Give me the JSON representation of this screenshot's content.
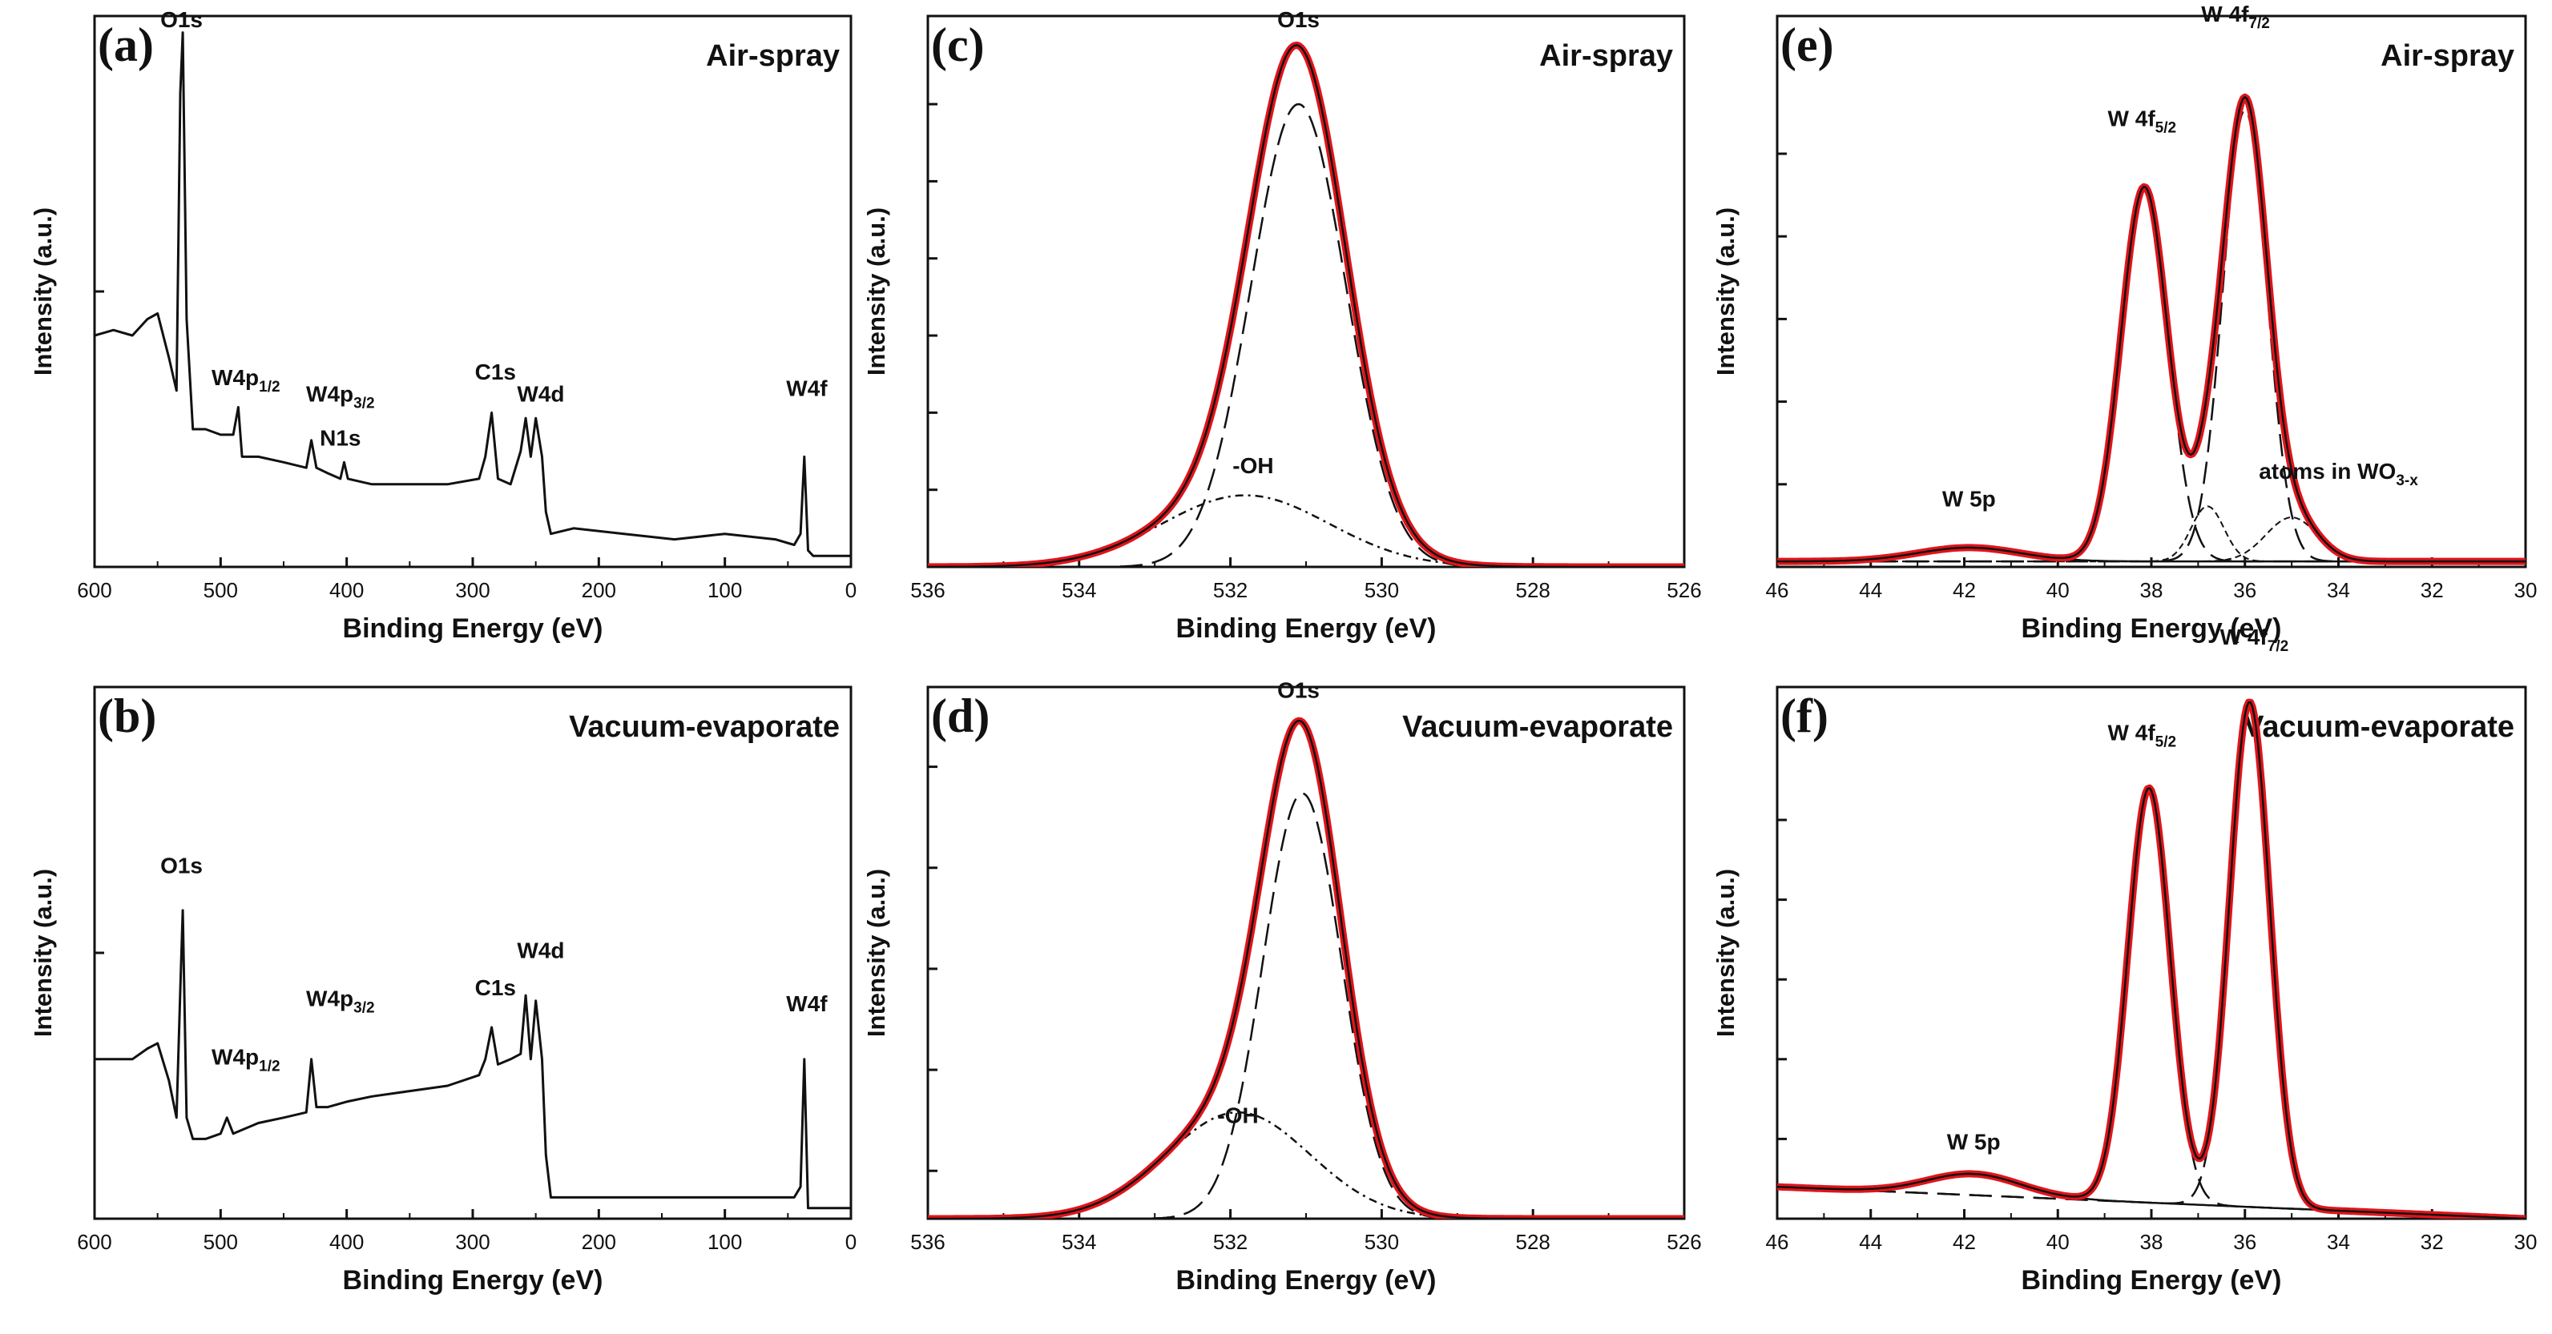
{
  "figure": {
    "panels_order": [
      "a",
      "b",
      "c",
      "d",
      "e",
      "f"
    ],
    "colors": {
      "fit": "#e0141a",
      "data": "#111111",
      "component": "#111111",
      "axis": "#111111"
    }
  },
  "chart_data": [
    {
      "id": "a",
      "label": "(a)",
      "title": "Air-spray",
      "type": "line",
      "xlabel": "Binding Energy (eV)",
      "ylabel": "Intensity (a.u.)",
      "xlim": [
        600,
        0
      ],
      "ylim": [
        0,
        100
      ],
      "xticks": [
        600,
        500,
        400,
        300,
        200,
        100,
        0
      ],
      "yticks": [
        50
      ],
      "x_tick_labels": [
        "600",
        "500",
        "400",
        "300",
        "200",
        "100",
        "0"
      ],
      "series": [
        {
          "name": "survey",
          "style": "data",
          "x": [
            600,
            585,
            570,
            558,
            550,
            541,
            535,
            532,
            530,
            527,
            522,
            512,
            500,
            490,
            486,
            483,
            470,
            450,
            432,
            428,
            424,
            415,
            405,
            402,
            399,
            380,
            350,
            320,
            295,
            290,
            285,
            280,
            270,
            262,
            258,
            254,
            250,
            245,
            242,
            238,
            220,
            180,
            140,
            100,
            60,
            45,
            40,
            37,
            34,
            30,
            0
          ],
          "y": [
            42,
            43,
            42,
            45,
            46,
            38,
            32,
            86,
            97,
            45,
            25,
            25,
            24,
            24,
            29,
            20,
            20,
            19,
            18,
            23,
            18,
            17,
            16,
            19,
            16,
            15,
            15,
            15,
            16,
            20,
            28,
            16,
            15,
            21,
            27,
            20,
            27,
            20,
            10,
            6,
            7,
            6,
            5,
            6,
            5,
            4,
            6,
            20,
            3,
            2,
            2
          ]
        }
      ],
      "annotations": [
        {
          "text": "O1s",
          "sub": "",
          "x": 531,
          "y": 98
        },
        {
          "text": "W4p",
          "sub": "1/2",
          "x": 480,
          "y": 33
        },
        {
          "text": "W4p",
          "sub": "3/2",
          "x": 405,
          "y": 30
        },
        {
          "text": "N1s",
          "sub": "",
          "x": 405,
          "y": 22
        },
        {
          "text": "C1s",
          "sub": "",
          "x": 282,
          "y": 34
        },
        {
          "text": "W4d",
          "sub": "",
          "x": 246,
          "y": 30
        },
        {
          "text": "W4f",
          "sub": "",
          "x": 35,
          "y": 31
        }
      ]
    },
    {
      "id": "b",
      "label": "(b)",
      "title": "Vacuum-evaporate",
      "type": "line",
      "xlabel": "Binding Energy (eV)",
      "ylabel": "Intensity (a.u.)",
      "xlim": [
        600,
        0
      ],
      "ylim": [
        0,
        100
      ],
      "xticks": [
        600,
        500,
        400,
        300,
        200,
        100,
        0
      ],
      "yticks": [
        50
      ],
      "x_tick_labels": [
        "600",
        "500",
        "400",
        "300",
        "200",
        "100",
        "0"
      ],
      "series": [
        {
          "name": "survey",
          "style": "data",
          "x": [
            600,
            585,
            570,
            558,
            550,
            541,
            535,
            532,
            530,
            527,
            522,
            512,
            500,
            495,
            490,
            470,
            450,
            432,
            428,
            424,
            415,
            400,
            380,
            350,
            320,
            295,
            290,
            285,
            280,
            270,
            262,
            258,
            254,
            250,
            245,
            242,
            238,
            220,
            180,
            140,
            100,
            60,
            45,
            40,
            37,
            34,
            30,
            0
          ],
          "y": [
            30,
            30,
            30,
            32,
            33,
            26,
            19,
            43,
            58,
            19,
            15,
            15,
            16,
            19,
            16,
            18,
            19,
            20,
            30,
            21,
            21,
            22,
            23,
            24,
            25,
            27,
            30,
            36,
            29,
            30,
            31,
            42,
            30,
            41,
            30,
            12,
            4,
            4,
            4,
            4,
            4,
            4,
            4,
            6,
            30,
            2,
            2,
            2
          ]
        }
      ],
      "annotations": [
        {
          "text": "O1s",
          "sub": "",
          "x": 531,
          "y": 65
        },
        {
          "text": "W4p",
          "sub": "1/2",
          "x": 480,
          "y": 29
        },
        {
          "text": "W4p",
          "sub": "3/2",
          "x": 405,
          "y": 40
        },
        {
          "text": "C1s",
          "sub": "",
          "x": 282,
          "y": 42
        },
        {
          "text": "W4d",
          "sub": "",
          "x": 246,
          "y": 49
        },
        {
          "text": "W4f",
          "sub": "",
          "x": 35,
          "y": 39
        }
      ]
    },
    {
      "id": "c",
      "label": "(c)",
      "title": "Air-spray",
      "type": "line",
      "xlabel": "Binding Energy (eV)",
      "ylabel": "Intensity (a.u.)",
      "xlim": [
        536,
        526
      ],
      "ylim": [
        0,
        100
      ],
      "xticks": [
        536,
        534,
        532,
        530,
        528,
        526
      ],
      "yticks": [
        14,
        28,
        42,
        56,
        70,
        84
      ],
      "x_tick_labels": [
        "536",
        "534",
        "532",
        "530",
        "528",
        "526"
      ],
      "peaks": [
        {
          "name": "O1s",
          "center": 531.1,
          "height": 84,
          "sigma": 0.63
        },
        {
          "name": "-OH",
          "center": 531.8,
          "height": 13,
          "sigma": 1.1
        }
      ],
      "baseline": [
        536,
        0,
        526,
        0
      ],
      "series": [
        {
          "name": "experimental",
          "style": "data",
          "formula": "fit"
        },
        {
          "name": "fit",
          "style": "fit"
        },
        {
          "name": "O1s component",
          "style": "dash"
        },
        {
          "name": "-OH component",
          "style": "dashdot"
        }
      ],
      "annotations": [
        {
          "text": "O1s",
          "sub": "",
          "x": 531.1,
          "y": 98
        },
        {
          "text": "-OH",
          "sub": "",
          "x": 531.7,
          "y": 17
        }
      ]
    },
    {
      "id": "d",
      "label": "(d)",
      "title": "Vacuum-evaporate",
      "type": "line",
      "xlabel": "Binding Energy (eV)",
      "ylabel": "Intensity (a.u.)",
      "xlim": [
        536,
        526
      ],
      "ylim": [
        0,
        100
      ],
      "xticks": [
        536,
        534,
        532,
        530,
        528,
        526
      ],
      "yticks": [
        9,
        28,
        47,
        66,
        85
      ],
      "x_tick_labels": [
        "536",
        "534",
        "532",
        "530",
        "528",
        "526"
      ],
      "peaks": [
        {
          "name": "O1s",
          "center": 531.05,
          "height": 80,
          "sigma": 0.52
        },
        {
          "name": "-OH",
          "center": 531.9,
          "height": 20,
          "sigma": 0.95
        }
      ],
      "baseline": [
        536,
        0,
        526,
        0
      ],
      "series": [
        {
          "name": "experimental",
          "style": "data",
          "formula": "fit"
        },
        {
          "name": "fit",
          "style": "fit"
        },
        {
          "name": "O1s component",
          "style": "dash"
        },
        {
          "name": "-OH component",
          "style": "dashdot"
        }
      ],
      "annotations": [
        {
          "text": "O1s",
          "sub": "",
          "x": 531.1,
          "y": 98
        },
        {
          "text": "-OH",
          "sub": "",
          "x": 531.9,
          "y": 18
        }
      ]
    },
    {
      "id": "e",
      "label": "(e)",
      "title": "Air-spray",
      "type": "line",
      "xlabel": "Binding Energy (eV)",
      "ylabel": "Intensity (a.u.)",
      "xlim": [
        46,
        30
      ],
      "ylim": [
        0,
        100
      ],
      "xticks": [
        46,
        44,
        42,
        40,
        38,
        36,
        34,
        32,
        30
      ],
      "yticks": [
        15,
        30,
        45,
        60,
        75
      ],
      "x_tick_labels": [
        "46",
        "44",
        "42",
        "40",
        "38",
        "36",
        "34",
        "32",
        "30"
      ],
      "peaks": [
        {
          "name": "W 4f5/2",
          "center": 38.15,
          "height": 68,
          "sigma": 0.5
        },
        {
          "name": "W 4f7/2",
          "center": 36.0,
          "height": 82,
          "sigma": 0.47
        },
        {
          "name": "W 5p",
          "center": 41.9,
          "height": 2.5,
          "sigma": 1.1
        }
      ],
      "minor_peaks": [
        {
          "center": 36.8,
          "height": 10,
          "sigma": 0.35
        },
        {
          "center": 35.0,
          "height": 8,
          "sigma": 0.55
        }
      ],
      "baseline": [
        46,
        1,
        30,
        1
      ],
      "series": [
        {
          "name": "experimental",
          "style": "data",
          "formula": "fit"
        },
        {
          "name": "fit",
          "style": "fit"
        },
        {
          "name": "components",
          "style": "dash"
        }
      ],
      "annotations": [
        {
          "text": "W 4f",
          "sub": "7/2",
          "x": 36.2,
          "y": 99
        },
        {
          "text": "W 4f",
          "sub": "5/2",
          "x": 38.2,
          "y": 80
        },
        {
          "text": "W 5p",
          "sub": "",
          "x": 41.9,
          "y": 11
        },
        {
          "text": "atoms in WO",
          "sub": "3-x",
          "x": 34.0,
          "y": 16
        }
      ]
    },
    {
      "id": "f",
      "label": "(f)",
      "title": "Vacuum-evaporate",
      "type": "line",
      "xlabel": "Binding Energy (eV)",
      "ylabel": "Intensity (a.u.)",
      "xlim": [
        46,
        30
      ],
      "ylim": [
        0,
        100
      ],
      "xticks": [
        46,
        44,
        42,
        40,
        38,
        36,
        34,
        32,
        30
      ],
      "yticks": [
        15,
        30,
        45,
        60,
        75
      ],
      "x_tick_labels": [
        "46",
        "44",
        "42",
        "40",
        "38",
        "36",
        "34",
        "32",
        "30"
      ],
      "peaks": [
        {
          "name": "W 4f5/2",
          "center": 38.05,
          "height": 78,
          "sigma": 0.45
        },
        {
          "name": "W 4f7/2",
          "center": 35.9,
          "height": 95,
          "sigma": 0.43
        },
        {
          "name": "W 5p",
          "center": 41.8,
          "height": 4,
          "sigma": 1.0
        }
      ],
      "minor_peaks": [],
      "baseline": [
        46,
        6,
        30,
        0
      ],
      "series": [
        {
          "name": "experimental",
          "style": "data",
          "formula": "fit"
        },
        {
          "name": "fit",
          "style": "fit"
        },
        {
          "name": "components",
          "style": "dash"
        }
      ],
      "annotations": [
        {
          "text": "W 4f",
          "sub": "7/2",
          "x": 35.8,
          "y": 108
        },
        {
          "text": "W 4f",
          "sub": "5/2",
          "x": 38.2,
          "y": 90
        },
        {
          "text": "W 5p",
          "sub": "",
          "x": 41.8,
          "y": 13
        }
      ]
    }
  ]
}
